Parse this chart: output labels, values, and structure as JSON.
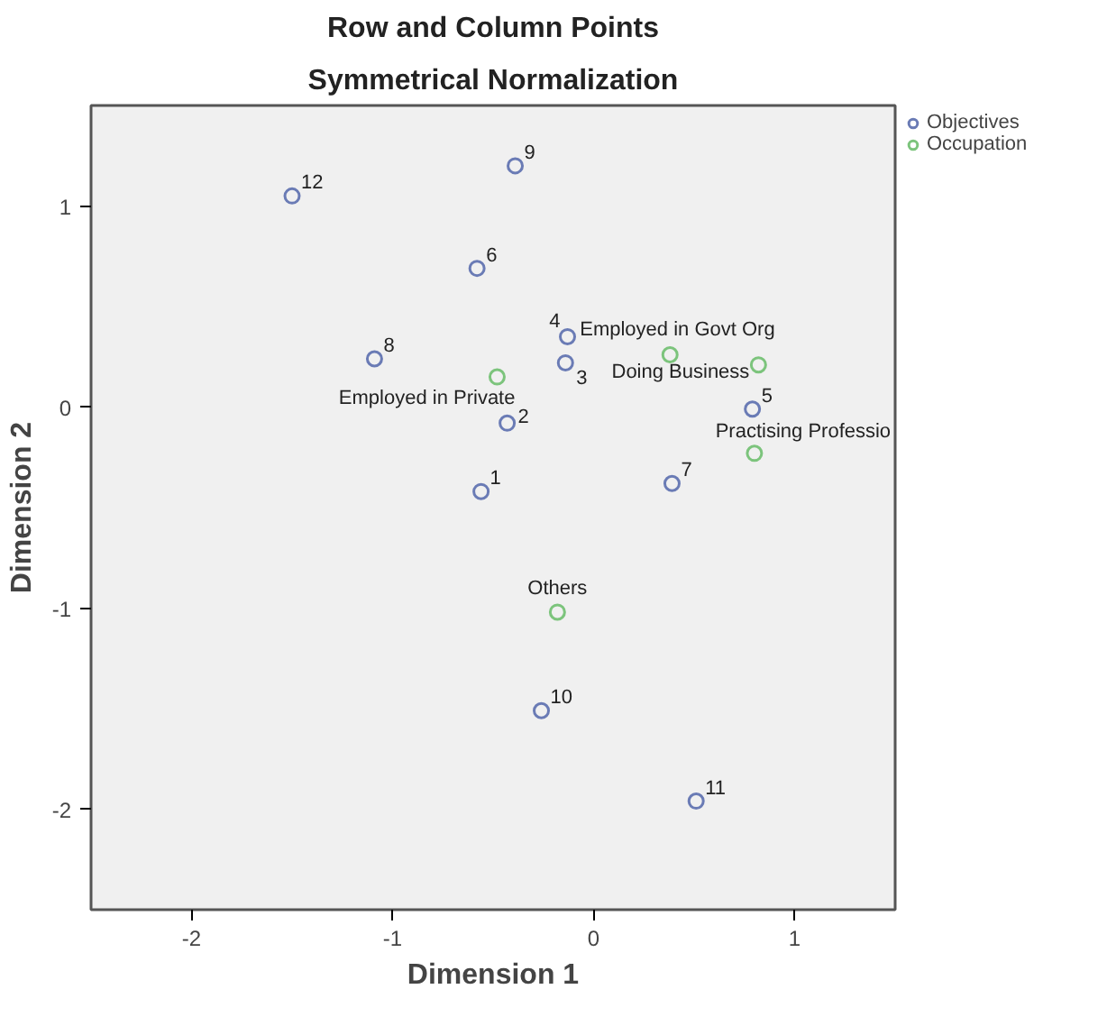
{
  "chart_data": {
    "type": "scatter",
    "title": "Row and Column Points",
    "subtitle": "Symmetrical Normalization",
    "xlabel": "Dimension 1",
    "ylabel": "Dimension 2",
    "xlim": [
      -2.5,
      1.5
    ],
    "ylim": [
      -2.5,
      1.5
    ],
    "xticks": [
      -2,
      -1,
      0,
      1
    ],
    "yticks": [
      -2,
      -1,
      0,
      1
    ],
    "grid": false,
    "legend": "top right",
    "marker": "circle",
    "series": [
      {
        "name": "Objectives",
        "color": "#6a7bb5",
        "x": [
          -0.56,
          -0.43,
          -0.14,
          -0.13,
          0.79,
          -0.58,
          0.39,
          -1.09,
          -0.39,
          -0.26,
          0.51,
          -1.5
        ],
        "values": [
          -0.42,
          -0.08,
          0.22,
          0.35,
          -0.01,
          0.69,
          -0.38,
          0.24,
          1.2,
          -1.51,
          -1.96,
          1.05
        ]
      },
      {
        "name": "Occupation",
        "color": "#7cc47c",
        "x": [
          0.38,
          -0.48,
          0.82,
          0.8,
          -0.18
        ],
        "values": [
          0.26,
          0.15,
          0.21,
          -0.23,
          -1.02
        ]
      }
    ],
    "annotations": [
      {
        "text": "1",
        "x": -0.56,
        "y": -0.42
      },
      {
        "text": "2",
        "x": -0.43,
        "y": -0.08
      },
      {
        "text": "3",
        "x": -0.14,
        "y": 0.22
      },
      {
        "text": "4",
        "x": -0.13,
        "y": 0.35
      },
      {
        "text": "5",
        "x": 0.79,
        "y": -0.01
      },
      {
        "text": "6",
        "x": -0.58,
        "y": 0.69
      },
      {
        "text": "7",
        "x": 0.39,
        "y": -0.38
      },
      {
        "text": "8",
        "x": -1.09,
        "y": 0.24
      },
      {
        "text": "9",
        "x": -0.39,
        "y": 1.2
      },
      {
        "text": "10",
        "x": -0.26,
        "y": -1.51
      },
      {
        "text": "11",
        "x": 0.51,
        "y": -1.96
      },
      {
        "text": "12",
        "x": -1.5,
        "y": 1.05
      },
      {
        "text": "Employed in Govt Org",
        "x": 0.38,
        "y": 0.26
      },
      {
        "text": "Employed in Private",
        "x": -0.48,
        "y": 0.15
      },
      {
        "text": "Doing Business",
        "x": 0.82,
        "y": 0.21
      },
      {
        "text": "Practising Professio",
        "x": 0.8,
        "y": -0.23
      },
      {
        "text": "Others",
        "x": -0.18,
        "y": -1.02
      }
    ]
  }
}
